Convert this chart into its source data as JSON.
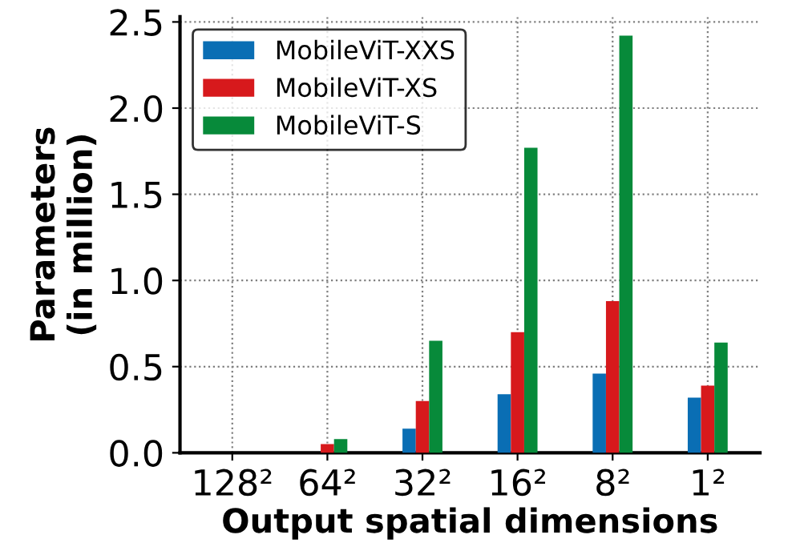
{
  "chart_data": {
    "type": "bar",
    "xlabel": "Output spatial dimensions",
    "ylabel": "Parameters\n(in million)",
    "categories": [
      "128²",
      "64²",
      "32²",
      "16²",
      "8²",
      "1²"
    ],
    "series": [
      {
        "name": "MobileViT-XXS",
        "color": "#0a6eb4",
        "values": [
          0,
          0,
          0.14,
          0.34,
          0.46,
          0.32
        ]
      },
      {
        "name": "MobileViT-XS",
        "color": "#d7191c",
        "values": [
          0,
          0.05,
          0.3,
          0.7,
          0.88,
          0.39
        ]
      },
      {
        "name": "MobileViT-S",
        "color": "#078a3a",
        "values": [
          0,
          0.08,
          0.65,
          1.77,
          2.42,
          0.64
        ]
      }
    ],
    "ylim": [
      0,
      2.53
    ],
    "yticks": [
      {
        "value": 0,
        "label": "0.0"
      },
      0.5,
      {
        "value": 1,
        "label": "1.0"
      },
      1.5,
      {
        "value": 2,
        "label": "2.0"
      },
      2.5
    ],
    "grid": true,
    "legend": "top left"
  }
}
